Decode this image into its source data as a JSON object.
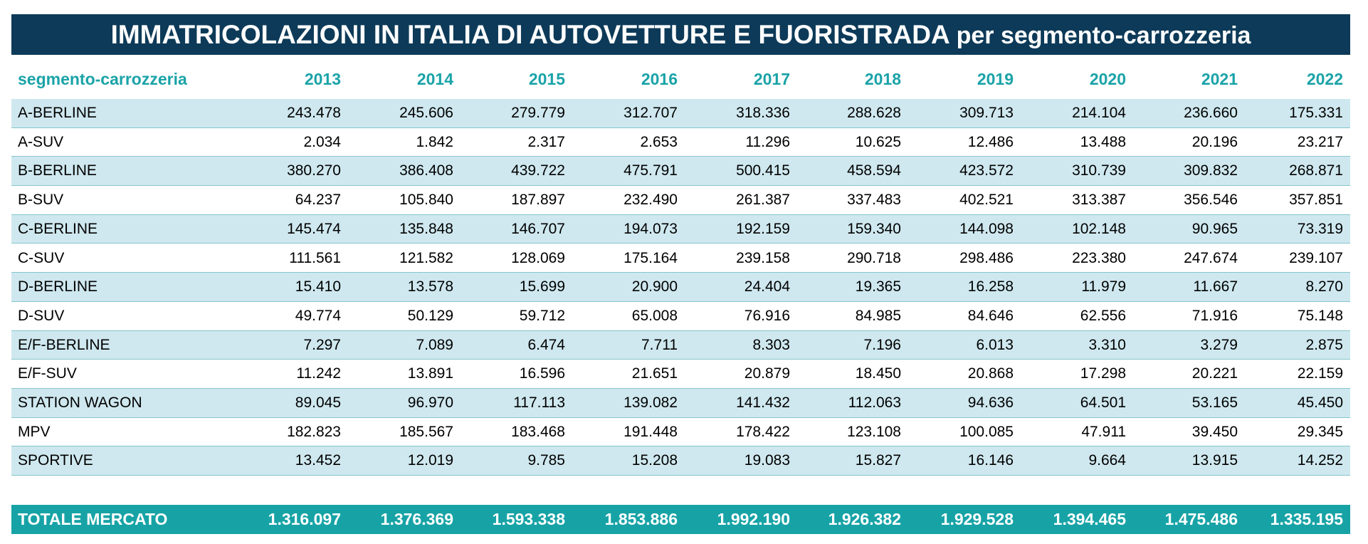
{
  "title": {
    "main": "IMMATRICOLAZIONI IN ITALIA DI AUTOVETTURE E FUORISTRADA",
    "sub": "per segmento-carrozzeria"
  },
  "table": {
    "header": [
      "segmento-carrozzeria",
      "2013",
      "2014",
      "2015",
      "2016",
      "2017",
      "2018",
      "2019",
      "2020",
      "2021",
      "2022"
    ],
    "rows": [
      [
        "A-BERLINE",
        "243.478",
        "245.606",
        "279.779",
        "312.707",
        "318.336",
        "288.628",
        "309.713",
        "214.104",
        "236.660",
        "175.331"
      ],
      [
        "A-SUV",
        "2.034",
        "1.842",
        "2.317",
        "2.653",
        "11.296",
        "10.625",
        "12.486",
        "13.488",
        "20.196",
        "23.217"
      ],
      [
        "B-BERLINE",
        "380.270",
        "386.408",
        "439.722",
        "475.791",
        "500.415",
        "458.594",
        "423.572",
        "310.739",
        "309.832",
        "268.871"
      ],
      [
        "B-SUV",
        "64.237",
        "105.840",
        "187.897",
        "232.490",
        "261.387",
        "337.483",
        "402.521",
        "313.387",
        "356.546",
        "357.851"
      ],
      [
        "C-BERLINE",
        "145.474",
        "135.848",
        "146.707",
        "194.073",
        "192.159",
        "159.340",
        "144.098",
        "102.148",
        "90.965",
        "73.319"
      ],
      [
        "C-SUV",
        "111.561",
        "121.582",
        "128.069",
        "175.164",
        "239.158",
        "290.718",
        "298.486",
        "223.380",
        "247.674",
        "239.107"
      ],
      [
        "D-BERLINE",
        "15.410",
        "13.578",
        "15.699",
        "20.900",
        "24.404",
        "19.365",
        "16.258",
        "11.979",
        "11.667",
        "8.270"
      ],
      [
        "D-SUV",
        "49.774",
        "50.129",
        "59.712",
        "65.008",
        "76.916",
        "84.985",
        "84.646",
        "62.556",
        "71.916",
        "75.148"
      ],
      [
        "E/F-BERLINE",
        "7.297",
        "7.089",
        "6.474",
        "7.711",
        "8.303",
        "7.196",
        "6.013",
        "3.310",
        "3.279",
        "2.875"
      ],
      [
        "E/F-SUV",
        "11.242",
        "13.891",
        "16.596",
        "21.651",
        "20.879",
        "18.450",
        "20.868",
        "17.298",
        "20.221",
        "22.159"
      ],
      [
        "STATION WAGON",
        "89.045",
        "96.970",
        "117.113",
        "139.082",
        "141.432",
        "112.063",
        "94.636",
        "64.501",
        "53.165",
        "45.450"
      ],
      [
        "MPV",
        "182.823",
        "185.567",
        "183.468",
        "191.448",
        "178.422",
        "123.108",
        "100.085",
        "47.911",
        "39.450",
        "29.345"
      ],
      [
        "SPORTIVE",
        "13.452",
        "12.019",
        "9.785",
        "15.208",
        "19.083",
        "15.827",
        "16.146",
        "9.664",
        "13.915",
        "14.252"
      ]
    ],
    "total": [
      "TOTALE MERCATO",
      "1.316.097",
      "1.376.369",
      "1.593.338",
      "1.853.886",
      "1.992.190",
      "1.926.382",
      "1.929.528",
      "1.394.465",
      "1.475.486",
      "1.335.195"
    ]
  }
}
